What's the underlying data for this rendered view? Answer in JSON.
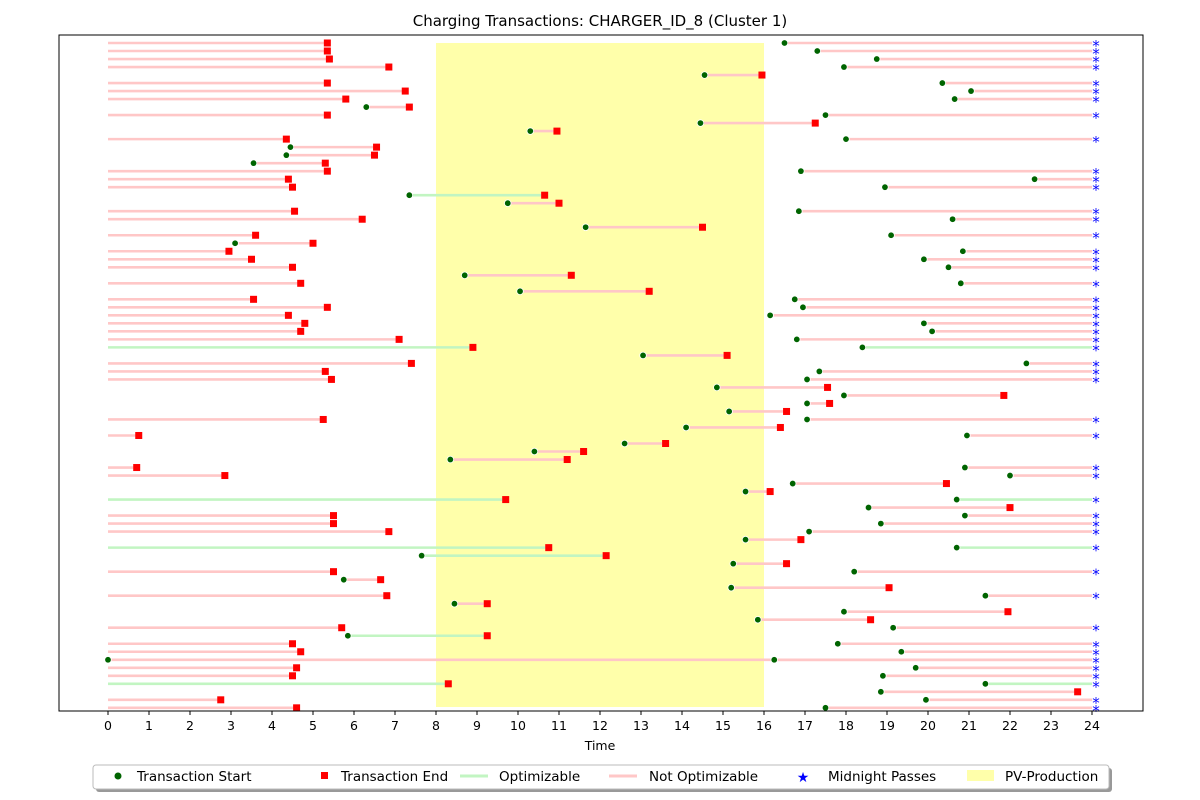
{
  "chart_data": {
    "type": "timeline",
    "title": "Charging Transactions: CHARGER_ID_8 (Cluster 1)",
    "xlabel": "Time",
    "xlim": [
      0,
      24
    ],
    "xticks": [
      "0",
      "1",
      "2",
      "3",
      "4",
      "5",
      "6",
      "7",
      "8",
      "9",
      "10",
      "11",
      "12",
      "13",
      "14",
      "15",
      "16",
      "17",
      "18",
      "19",
      "20",
      "21",
      "22",
      "23",
      "24"
    ],
    "pv_production_window": [
      8,
      16
    ],
    "midnight_marker": "*",
    "colors": {
      "start": "#006400",
      "end": "#ff0000",
      "optimizable": "#c2f5c2",
      "not_optimizable": "#ffc7c7",
      "midnight": "#0000ff",
      "pv": "#ffffaa"
    },
    "legend": {
      "placement": "bottom-center",
      "items": [
        "Transaction Start",
        "Transaction End",
        "Optimizable",
        "Not Optimizable",
        "Midnight Passes",
        "PV-Production"
      ]
    },
    "rows": [
      {
        "segments": [
          {
            "start": null,
            "end": 5.35,
            "opt": false
          },
          {
            "start": 16.5,
            "end": null,
            "opt": false
          }
        ]
      },
      {
        "segments": [
          {
            "start": null,
            "end": 5.35,
            "opt": false
          },
          {
            "start": 17.3,
            "end": null,
            "opt": false
          }
        ]
      },
      {
        "segments": [
          {
            "start": null,
            "end": 5.4,
            "opt": false
          },
          {
            "start": 18.75,
            "end": null,
            "opt": false
          }
        ]
      },
      {
        "segments": [
          {
            "start": null,
            "end": 6.85,
            "opt": false
          },
          {
            "start": 17.95,
            "end": null,
            "opt": false
          }
        ]
      },
      {
        "segments": [
          {
            "start": 14.55,
            "end": 15.95,
            "opt": false
          }
        ]
      },
      {
        "segments": [
          {
            "start": null,
            "end": 5.35,
            "opt": false
          },
          {
            "start": 20.35,
            "end": null,
            "opt": false
          }
        ]
      },
      {
        "segments": [
          {
            "start": null,
            "end": 7.25,
            "opt": false
          },
          {
            "start": 21.05,
            "end": null,
            "opt": false
          }
        ]
      },
      {
        "segments": [
          {
            "start": null,
            "end": 5.8,
            "opt": false
          },
          {
            "start": 20.65,
            "end": null,
            "opt": false
          }
        ]
      },
      {
        "segments": [
          {
            "start": 6.3,
            "end": 7.35,
            "opt": false
          }
        ]
      },
      {
        "segments": [
          {
            "start": null,
            "end": 5.35,
            "opt": false
          },
          {
            "start": 17.5,
            "end": null,
            "opt": false
          }
        ]
      },
      {
        "segments": [
          {
            "start": 14.45,
            "end": 17.25,
            "opt": false
          }
        ]
      },
      {
        "segments": [
          {
            "start": 10.3,
            "end": 10.95,
            "opt": false
          }
        ]
      },
      {
        "segments": [
          {
            "start": null,
            "end": 4.35,
            "opt": false
          },
          {
            "start": 18.0,
            "end": null,
            "opt": false
          }
        ]
      },
      {
        "segments": [
          {
            "start": 4.45,
            "end": 6.55,
            "opt": false
          }
        ]
      },
      {
        "segments": [
          {
            "start": 4.35,
            "end": 6.5,
            "opt": false
          }
        ]
      },
      {
        "segments": [
          {
            "start": 3.55,
            "end": 5.3,
            "opt": false
          }
        ]
      },
      {
        "segments": [
          {
            "start": null,
            "end": 5.35,
            "opt": false
          },
          {
            "start": 16.9,
            "end": null,
            "opt": false
          }
        ]
      },
      {
        "segments": [
          {
            "start": null,
            "end": 4.4,
            "opt": false
          },
          {
            "start": 22.6,
            "end": null,
            "opt": false
          }
        ]
      },
      {
        "segments": [
          {
            "start": null,
            "end": 4.5,
            "opt": false
          },
          {
            "start": 18.95,
            "end": null,
            "opt": false
          }
        ]
      },
      {
        "segments": [
          {
            "start": 7.35,
            "end": 10.65,
            "opt": true
          }
        ]
      },
      {
        "segments": [
          {
            "start": 9.75,
            "end": 11.0,
            "opt": false
          }
        ]
      },
      {
        "segments": [
          {
            "start": null,
            "end": 4.55,
            "opt": false
          },
          {
            "start": 16.85,
            "end": null,
            "opt": false
          }
        ]
      },
      {
        "segments": [
          {
            "start": null,
            "end": 6.2,
            "opt": false
          },
          {
            "start": 20.6,
            "end": null,
            "opt": false
          }
        ]
      },
      {
        "segments": [
          {
            "start": 11.65,
            "end": 14.5,
            "opt": false
          }
        ]
      },
      {
        "segments": [
          {
            "start": null,
            "end": 3.6,
            "opt": false
          },
          {
            "start": 19.1,
            "end": null,
            "opt": false
          }
        ]
      },
      {
        "segments": [
          {
            "start": 3.1,
            "end": 5.0,
            "opt": false
          }
        ]
      },
      {
        "segments": [
          {
            "start": null,
            "end": 2.95,
            "opt": false
          },
          {
            "start": 20.85,
            "end": null,
            "opt": false
          }
        ]
      },
      {
        "segments": [
          {
            "start": null,
            "end": 3.5,
            "opt": false
          },
          {
            "start": 19.9,
            "end": null,
            "opt": false
          }
        ]
      },
      {
        "segments": [
          {
            "start": null,
            "end": 4.5,
            "opt": false
          },
          {
            "start": 20.5,
            "end": null,
            "opt": false
          }
        ]
      },
      {
        "segments": [
          {
            "start": 8.7,
            "end": 11.3,
            "opt": false
          }
        ]
      },
      {
        "segments": [
          {
            "start": null,
            "end": 4.7,
            "opt": false
          },
          {
            "start": 20.8,
            "end": null,
            "opt": false
          }
        ]
      },
      {
        "segments": [
          {
            "start": 10.05,
            "end": 13.2,
            "opt": false
          }
        ]
      },
      {
        "segments": [
          {
            "start": null,
            "end": 3.55,
            "opt": false
          },
          {
            "start": 16.75,
            "end": null,
            "opt": false
          }
        ]
      },
      {
        "segments": [
          {
            "start": null,
            "end": 5.35,
            "opt": false
          },
          {
            "start": 16.95,
            "end": null,
            "opt": false
          }
        ]
      },
      {
        "segments": [
          {
            "start": null,
            "end": 4.4,
            "opt": false
          },
          {
            "start": 16.15,
            "end": null,
            "opt": false
          }
        ]
      },
      {
        "segments": [
          {
            "start": null,
            "end": 4.8,
            "opt": false
          },
          {
            "start": 19.9,
            "end": null,
            "opt": false
          }
        ]
      },
      {
        "segments": [
          {
            "start": null,
            "end": 4.7,
            "opt": false
          },
          {
            "start": 20.1,
            "end": null,
            "opt": false
          }
        ]
      },
      {
        "segments": [
          {
            "start": null,
            "end": 7.1,
            "opt": false
          },
          {
            "start": 16.8,
            "end": null,
            "opt": false
          }
        ]
      },
      {
        "segments": [
          {
            "start": null,
            "end": 8.9,
            "opt": true
          },
          {
            "start": 18.4,
            "end": null,
            "opt": true
          }
        ]
      },
      {
        "segments": [
          {
            "start": 13.05,
            "end": 15.1,
            "opt": false
          }
        ]
      },
      {
        "segments": [
          {
            "start": null,
            "end": 7.4,
            "opt": false
          },
          {
            "start": 22.4,
            "end": null,
            "opt": false
          }
        ]
      },
      {
        "segments": [
          {
            "start": null,
            "end": 5.3,
            "opt": false
          },
          {
            "start": 17.35,
            "end": null,
            "opt": false
          }
        ]
      },
      {
        "segments": [
          {
            "start": null,
            "end": 5.45,
            "opt": false
          },
          {
            "start": 17.05,
            "end": null,
            "opt": false
          }
        ]
      },
      {
        "segments": [
          {
            "start": 14.85,
            "end": 17.55,
            "opt": false
          }
        ]
      },
      {
        "segments": [
          {
            "start": 17.95,
            "end": 21.85,
            "opt": false
          }
        ]
      },
      {
        "segments": [
          {
            "start": 17.05,
            "end": 17.6,
            "opt": false
          }
        ]
      },
      {
        "segments": [
          {
            "start": 15.15,
            "end": 16.55,
            "opt": false
          }
        ]
      },
      {
        "segments": [
          {
            "start": null,
            "end": 5.25,
            "opt": false
          },
          {
            "start": 17.05,
            "end": null,
            "opt": false
          }
        ]
      },
      {
        "segments": [
          {
            "start": 14.1,
            "end": 16.4,
            "opt": false
          }
        ]
      },
      {
        "segments": [
          {
            "start": null,
            "end": 0.75,
            "opt": false
          },
          {
            "start": 20.95,
            "end": null,
            "opt": false
          }
        ]
      },
      {
        "segments": [
          {
            "start": 12.6,
            "end": 13.6,
            "opt": false
          }
        ]
      },
      {
        "segments": [
          {
            "start": 10.4,
            "end": 11.6,
            "opt": false
          }
        ]
      },
      {
        "segments": [
          {
            "start": 8.35,
            "end": 11.2,
            "opt": false
          }
        ]
      },
      {
        "segments": [
          {
            "start": null,
            "end": 0.7,
            "opt": false
          },
          {
            "start": 20.9,
            "end": null,
            "opt": false
          }
        ]
      },
      {
        "segments": [
          {
            "start": null,
            "end": 2.85,
            "opt": false
          },
          {
            "start": 22.0,
            "end": null,
            "opt": false
          }
        ]
      },
      {
        "segments": [
          {
            "start": 16.7,
            "end": 20.45,
            "opt": false
          }
        ]
      },
      {
        "segments": [
          {
            "start": 15.55,
            "end": 16.15,
            "opt": false
          }
        ]
      },
      {
        "segments": [
          {
            "start": null,
            "end": 9.7,
            "opt": true
          },
          {
            "start": 20.7,
            "end": null,
            "opt": true
          }
        ]
      },
      {
        "segments": [
          {
            "start": 18.55,
            "end": 22.0,
            "opt": false
          }
        ]
      },
      {
        "segments": [
          {
            "start": null,
            "end": 5.5,
            "opt": false
          },
          {
            "start": 20.9,
            "end": null,
            "opt": false
          }
        ]
      },
      {
        "segments": [
          {
            "start": null,
            "end": 5.5,
            "opt": false
          },
          {
            "start": 18.85,
            "end": null,
            "opt": false
          }
        ]
      },
      {
        "segments": [
          {
            "start": null,
            "end": 6.85,
            "opt": false
          },
          {
            "start": 17.1,
            "end": null,
            "opt": false
          }
        ]
      },
      {
        "segments": [
          {
            "start": 15.55,
            "end": 16.9,
            "opt": false
          }
        ]
      },
      {
        "segments": [
          {
            "start": null,
            "end": 10.75,
            "opt": true
          },
          {
            "start": 20.7,
            "end": null,
            "opt": true
          }
        ]
      },
      {
        "segments": [
          {
            "start": 7.65,
            "end": 12.15,
            "opt": true
          }
        ]
      },
      {
        "segments": [
          {
            "start": 15.25,
            "end": 16.55,
            "opt": false
          }
        ]
      },
      {
        "segments": [
          {
            "start": null,
            "end": 5.5,
            "opt": false
          },
          {
            "start": 18.2,
            "end": null,
            "opt": false
          }
        ]
      },
      {
        "segments": [
          {
            "start": 5.75,
            "end": 6.65,
            "opt": false
          }
        ]
      },
      {
        "segments": [
          {
            "start": 15.2,
            "end": 19.05,
            "opt": false
          }
        ]
      },
      {
        "segments": [
          {
            "start": null,
            "end": 6.8,
            "opt": false
          },
          {
            "start": 21.4,
            "end": null,
            "opt": false
          }
        ]
      },
      {
        "segments": [
          {
            "start": 8.45,
            "end": 9.25,
            "opt": false
          }
        ]
      },
      {
        "segments": [
          {
            "start": 17.95,
            "end": 21.95,
            "opt": false
          }
        ]
      },
      {
        "segments": [
          {
            "start": 15.85,
            "end": 18.6,
            "opt": false
          }
        ]
      },
      {
        "segments": [
          {
            "start": null,
            "end": 5.7,
            "opt": false
          },
          {
            "start": 19.15,
            "end": null,
            "opt": false
          }
        ]
      },
      {
        "segments": [
          {
            "start": 5.85,
            "end": 9.25,
            "opt": true
          }
        ]
      },
      {
        "segments": [
          {
            "start": null,
            "end": 4.5,
            "opt": false
          },
          {
            "start": 17.8,
            "end": null,
            "opt": false
          }
        ]
      },
      {
        "segments": [
          {
            "start": null,
            "end": 4.7,
            "opt": false
          },
          {
            "start": 19.35,
            "end": null,
            "opt": false
          }
        ]
      },
      {
        "segments": [
          {
            "start": 0.0,
            "end": null,
            "opt": false
          },
          {
            "start": 16.25,
            "end": null,
            "opt": false
          }
        ]
      },
      {
        "segments": [
          {
            "start": null,
            "end": 4.6,
            "opt": false
          },
          {
            "start": 19.7,
            "end": null,
            "opt": false
          }
        ]
      },
      {
        "segments": [
          {
            "start": null,
            "end": 4.5,
            "opt": false
          },
          {
            "start": 18.9,
            "end": null,
            "opt": false
          }
        ]
      },
      {
        "segments": [
          {
            "start": null,
            "end": 8.3,
            "opt": true
          },
          {
            "start": 21.4,
            "end": null,
            "opt": true
          }
        ]
      },
      {
        "segments": [
          {
            "start": 18.85,
            "end": 23.65,
            "opt": false
          }
        ]
      },
      {
        "segments": [
          {
            "start": null,
            "end": 2.75,
            "opt": false
          },
          {
            "start": 19.95,
            "end": null,
            "opt": false
          }
        ]
      },
      {
        "segments": [
          {
            "start": null,
            "end": 4.6,
            "opt": false
          },
          {
            "start": 17.5,
            "end": null,
            "opt": false
          }
        ]
      }
    ]
  }
}
